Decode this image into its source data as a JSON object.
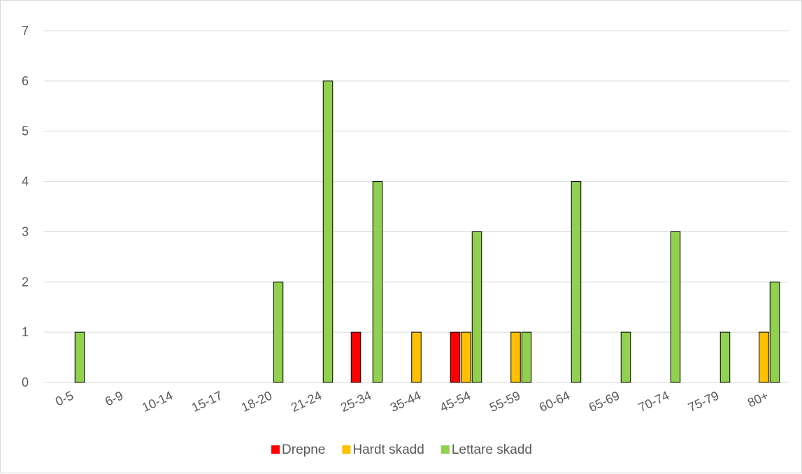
{
  "chart_data": {
    "type": "bar",
    "categories": [
      "0-5",
      "6-9",
      "10-14",
      "15-17",
      "18-20",
      "21-24",
      "25-34",
      "35-44",
      "45-54",
      "55-59",
      "60-64",
      "65-69",
      "70-74",
      "75-79",
      "80+"
    ],
    "series": [
      {
        "name": "Drepne",
        "color": "#ff0000",
        "values": [
          0,
          0,
          0,
          0,
          0,
          0,
          1,
          0,
          1,
          0,
          0,
          0,
          0,
          0,
          0
        ]
      },
      {
        "name": "Hardt skadd",
        "color": "#ffc000",
        "values": [
          0,
          0,
          0,
          0,
          0,
          0,
          0,
          1,
          1,
          1,
          0,
          0,
          0,
          0,
          1
        ]
      },
      {
        "name": "Lettare skadd",
        "color": "#92d050",
        "values": [
          1,
          0,
          0,
          0,
          2,
          6,
          4,
          0,
          3,
          1,
          4,
          1,
          3,
          1,
          2
        ]
      }
    ],
    "yticks": [
      0,
      1,
      2,
      3,
      4,
      5,
      6,
      7
    ],
    "ylim": [
      0,
      7
    ],
    "grid": true,
    "legend_position": "bottom"
  }
}
